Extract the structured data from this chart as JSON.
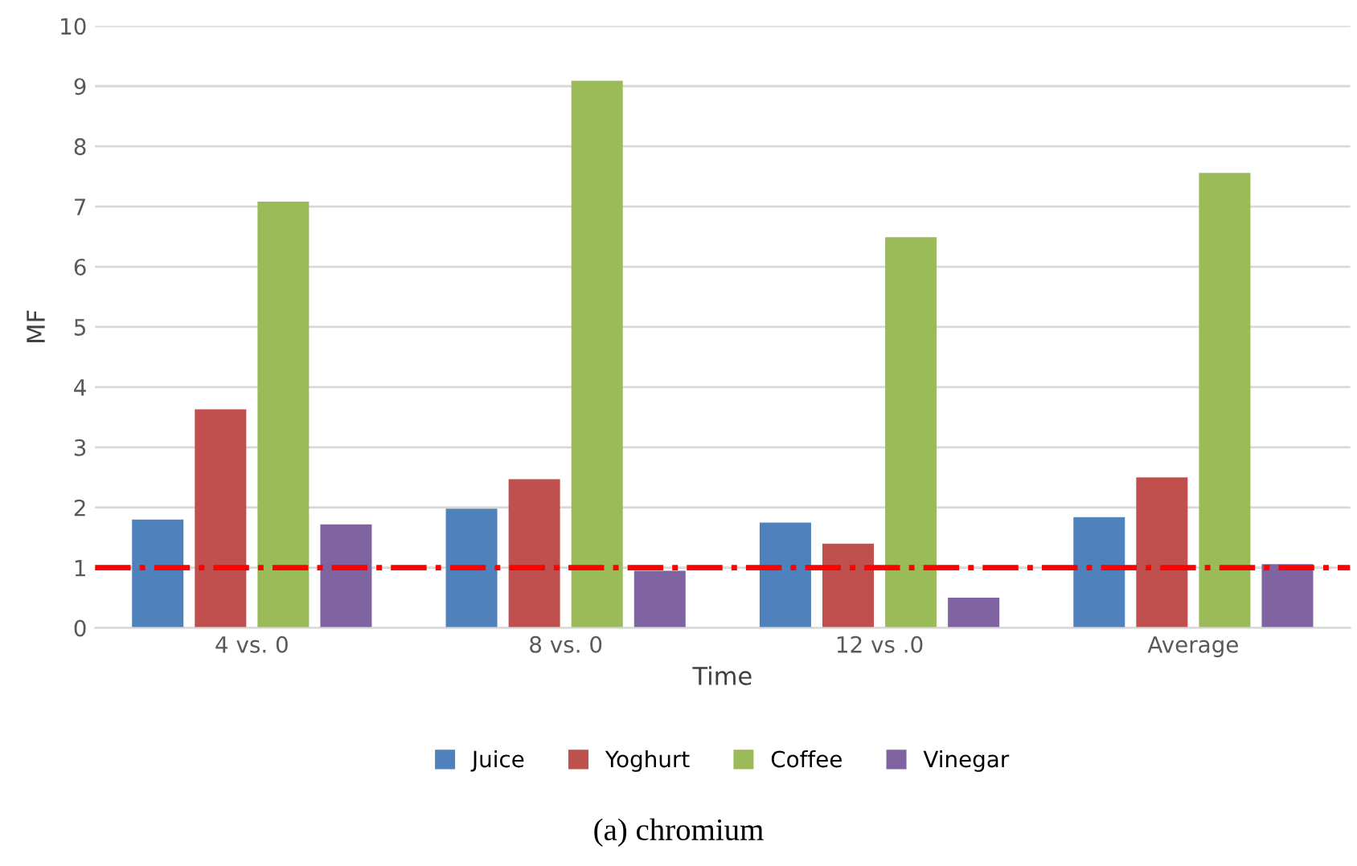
{
  "chart_data": {
    "type": "bar",
    "title": "(a) chromium",
    "xlabel": "Time",
    "ylabel": "MF",
    "categories": [
      "4 vs. 0",
      "8 vs. 0",
      "12 vs .0",
      "Average"
    ],
    "series": [
      {
        "name": "Juice",
        "color": "#4f81bd",
        "values": [
          1.8,
          1.98,
          1.75,
          1.84
        ]
      },
      {
        "name": "Yoghurt",
        "color": "#c0504d",
        "values": [
          3.63,
          2.47,
          1.4,
          2.5
        ]
      },
      {
        "name": "Coffee",
        "color": "#9bbb59",
        "values": [
          7.08,
          9.09,
          6.49,
          7.56
        ]
      },
      {
        "name": "Vinegar",
        "color": "#8064a2",
        "values": [
          1.72,
          0.95,
          0.5,
          1.06
        ]
      }
    ],
    "ylim": [
      0,
      10
    ],
    "yticks": [
      0,
      1,
      2,
      3,
      4,
      5,
      6,
      7,
      8,
      9,
      10
    ],
    "grid": "y",
    "legend": "bottom",
    "ref_lines": [
      {
        "axis": "y",
        "value": 1,
        "color": "#ff0000",
        "line_style": "dashdot"
      }
    ]
  }
}
